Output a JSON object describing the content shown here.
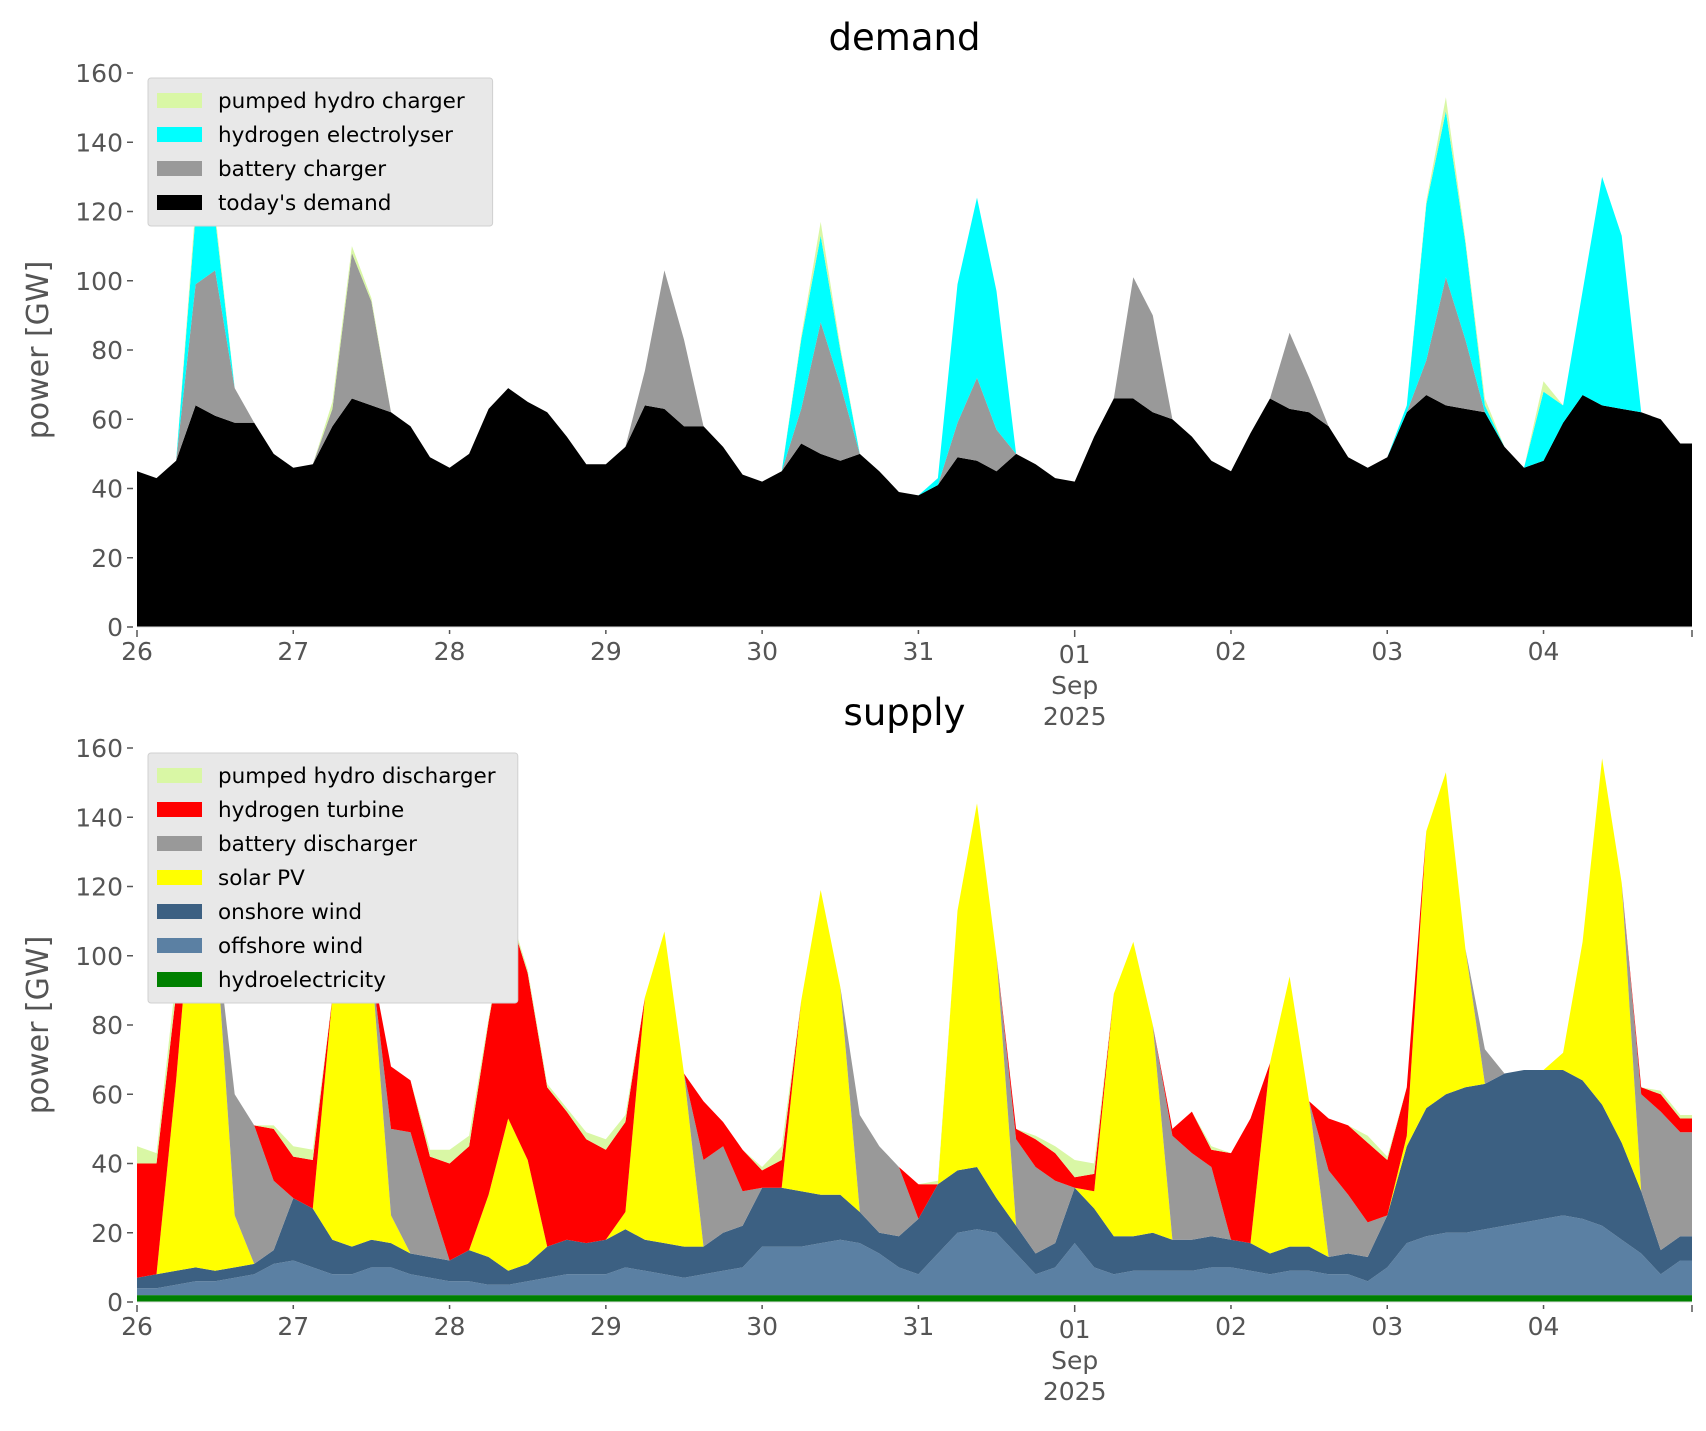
{
  "figure": {
    "panels": [
      "demand",
      "supply"
    ]
  },
  "chart_data": [
    {
      "type": "area",
      "stacked": true,
      "title": "demand",
      "xlabel": "",
      "ylabel": "power [GW]",
      "ylim": [
        0,
        160
      ],
      "yticks": [
        0,
        20,
        40,
        60,
        80,
        100,
        120,
        140,
        160
      ],
      "ytick_labels": [
        "0",
        "20",
        "40",
        "60",
        "80",
        "100",
        "120",
        "140",
        "160"
      ],
      "xrange_days": [
        0,
        9.95
      ],
      "xticks": [
        {
          "day": 0,
          "label": "26"
        },
        {
          "day": 1,
          "label": "27"
        },
        {
          "day": 2,
          "label": "28"
        },
        {
          "day": 3,
          "label": "29"
        },
        {
          "day": 4,
          "label": "30"
        },
        {
          "day": 5,
          "label": "31"
        },
        {
          "day": 6,
          "label": "01",
          "sublabel": [
            "Sep",
            "2025"
          ]
        },
        {
          "day": 7,
          "label": "02"
        },
        {
          "day": 8,
          "label": "03"
        },
        {
          "day": 9,
          "label": "04"
        }
      ],
      "x_start": "2025-08-26 00:00",
      "x_step_hours": 3,
      "legend_position": "top-left",
      "grid": false,
      "series": [
        {
          "name": "today's demand",
          "color": "#000000",
          "values": [
            45,
            43,
            48,
            64,
            61,
            59,
            59,
            50,
            46,
            47,
            58,
            66,
            64,
            62,
            58,
            49,
            46,
            50,
            63,
            69,
            65,
            62,
            55,
            47,
            47,
            52,
            64,
            63,
            58,
            58,
            52,
            44,
            42,
            45,
            53,
            50,
            48,
            50,
            45,
            39,
            38,
            41,
            49,
            48,
            45,
            50,
            47,
            43,
            42,
            55,
            66,
            66,
            62,
            60,
            55,
            48,
            45,
            56,
            66,
            63,
            62,
            58,
            49,
            46,
            49,
            62,
            67,
            64,
            63,
            62,
            52,
            46,
            48,
            59,
            67,
            64,
            63,
            62,
            60,
            53
          ]
        },
        {
          "name": "battery charger",
          "color": "#999999",
          "values": [
            0,
            0,
            0,
            35,
            42,
            10,
            0,
            0,
            0,
            0,
            5,
            42,
            30,
            0,
            0,
            0,
            0,
            0,
            0,
            0,
            0,
            0,
            0,
            0,
            0,
            0,
            10,
            40,
            25,
            0,
            0,
            0,
            0,
            0,
            10,
            38,
            22,
            0,
            0,
            0,
            0,
            0,
            10,
            24,
            12,
            0,
            0,
            0,
            0,
            0,
            0,
            35,
            28,
            0,
            0,
            0,
            0,
            0,
            0,
            22,
            10,
            0,
            0,
            0,
            0,
            0,
            10,
            37,
            20,
            0,
            0,
            0,
            0,
            0,
            0,
            0,
            0,
            0,
            0,
            0
          ]
        },
        {
          "name": "hydrogen electrolyser",
          "color": "#00ffff",
          "values": [
            0,
            0,
            0,
            20,
            15,
            0,
            0,
            0,
            0,
            0,
            0,
            0,
            0,
            0,
            0,
            0,
            0,
            0,
            0,
            0,
            0,
            0,
            0,
            0,
            0,
            0,
            0,
            0,
            0,
            0,
            0,
            0,
            0,
            0,
            20,
            25,
            10,
            0,
            0,
            0,
            0,
            2,
            40,
            52,
            40,
            0,
            0,
            0,
            0,
            0,
            0,
            0,
            0,
            0,
            0,
            0,
            0,
            0,
            0,
            0,
            0,
            0,
            0,
            0,
            0,
            2,
            45,
            48,
            28,
            2,
            0,
            0,
            20,
            5,
            30,
            66,
            50,
            0,
            0,
            0
          ]
        },
        {
          "name": "pumped hydro charger",
          "color": "#d9f7a5",
          "values": [
            0,
            0,
            0,
            3,
            2,
            0,
            0,
            0,
            0,
            0,
            2,
            2,
            1,
            0,
            0,
            0,
            0,
            0,
            0,
            0,
            0,
            0,
            0,
            0,
            0,
            0,
            0,
            0,
            0,
            0,
            0,
            0,
            0,
            0,
            1,
            4,
            1,
            0,
            0,
            0,
            0,
            0,
            0,
            0,
            0,
            0,
            0,
            0,
            0,
            0,
            0,
            0,
            0,
            0,
            0,
            0,
            0,
            0,
            0,
            0,
            0,
            0,
            0,
            0,
            0,
            0,
            1,
            4,
            1,
            2,
            0,
            0,
            3,
            0,
            0,
            0,
            0,
            0,
            0,
            0
          ]
        }
      ]
    },
    {
      "type": "area",
      "stacked": true,
      "title": "supply",
      "xlabel": "",
      "ylabel": "power [GW]",
      "ylim": [
        0,
        160
      ],
      "yticks": [
        0,
        20,
        40,
        60,
        80,
        100,
        120,
        140,
        160
      ],
      "ytick_labels": [
        "0",
        "20",
        "40",
        "60",
        "80",
        "100",
        "120",
        "140",
        "160"
      ],
      "xrange_days": [
        0,
        9.95
      ],
      "xticks": [
        {
          "day": 0,
          "label": "26"
        },
        {
          "day": 1,
          "label": "27"
        },
        {
          "day": 2,
          "label": "28"
        },
        {
          "day": 3,
          "label": "29"
        },
        {
          "day": 4,
          "label": "30"
        },
        {
          "day": 5,
          "label": "31"
        },
        {
          "day": 6,
          "label": "01",
          "sublabel": [
            "Sep",
            "2025"
          ]
        },
        {
          "day": 7,
          "label": "02"
        },
        {
          "day": 8,
          "label": "03"
        },
        {
          "day": 9,
          "label": "04"
        }
      ],
      "x_start": "2025-08-26 00:00",
      "x_step_hours": 3,
      "legend_position": "top-left",
      "grid": false,
      "series": [
        {
          "name": "hydroelectricity",
          "color": "#008000",
          "values": [
            2,
            2,
            2,
            2,
            2,
            2,
            2,
            2,
            2,
            2,
            2,
            2,
            2,
            2,
            2,
            2,
            2,
            2,
            2,
            2,
            2,
            2,
            2,
            2,
            2,
            2,
            2,
            2,
            2,
            2,
            2,
            2,
            2,
            2,
            2,
            2,
            2,
            2,
            2,
            2,
            2,
            2,
            2,
            2,
            2,
            2,
            2,
            2,
            2,
            2,
            2,
            2,
            2,
            2,
            2,
            2,
            2,
            2,
            2,
            2,
            2,
            2,
            2,
            2,
            2,
            2,
            2,
            2,
            2,
            2,
            2,
            2,
            2,
            2,
            2,
            2,
            2,
            2,
            2,
            2
          ]
        },
        {
          "name": "offshore wind",
          "color": "#5b80a3",
          "values": [
            2,
            2,
            3,
            4,
            4,
            5,
            6,
            9,
            10,
            8,
            6,
            6,
            8,
            8,
            6,
            5,
            4,
            4,
            3,
            3,
            4,
            5,
            6,
            6,
            6,
            8,
            7,
            6,
            5,
            6,
            7,
            8,
            14,
            14,
            14,
            15,
            16,
            15,
            12,
            8,
            6,
            12,
            18,
            19,
            18,
            12,
            6,
            8,
            15,
            8,
            6,
            7,
            7,
            7,
            7,
            8,
            8,
            7,
            6,
            7,
            7,
            6,
            6,
            4,
            8,
            15,
            17,
            18,
            18,
            19,
            20,
            21,
            22,
            23,
            22,
            20,
            16,
            12,
            6,
            10
          ]
        },
        {
          "name": "onshore wind",
          "color": "#3c6082",
          "values": [
            3,
            4,
            4,
            4,
            3,
            3,
            3,
            4,
            18,
            17,
            10,
            8,
            8,
            7,
            6,
            6,
            6,
            9,
            8,
            4,
            5,
            9,
            10,
            9,
            10,
            11,
            9,
            9,
            9,
            8,
            11,
            12,
            17,
            17,
            16,
            14,
            13,
            9,
            6,
            9,
            16,
            20,
            18,
            18,
            10,
            8,
            6,
            7,
            16,
            17,
            11,
            10,
            11,
            9,
            9,
            9,
            8,
            8,
            6,
            7,
            7,
            5,
            6,
            7,
            15,
            28,
            37,
            40,
            42,
            42,
            44,
            44,
            43,
            42,
            40,
            35,
            28,
            18,
            7,
            7
          ]
        },
        {
          "name": "solar PV",
          "color": "#ffff00",
          "values": [
            0,
            0,
            55,
            120,
            100,
            15,
            0,
            0,
            0,
            0,
            70,
            105,
            80,
            8,
            0,
            0,
            0,
            0,
            18,
            44,
            30,
            0,
            0,
            0,
            0,
            5,
            70,
            90,
            50,
            0,
            0,
            0,
            0,
            0,
            55,
            88,
            60,
            0,
            0,
            0,
            0,
            0,
            75,
            105,
            70,
            0,
            0,
            0,
            0,
            5,
            70,
            85,
            60,
            0,
            0,
            0,
            0,
            0,
            55,
            78,
            42,
            0,
            0,
            0,
            0,
            3,
            80,
            93,
            40,
            0,
            0,
            0,
            0,
            5,
            40,
            100,
            75,
            0,
            0,
            0
          ]
        },
        {
          "name": "battery discharger",
          "color": "#999999",
          "values": [
            0,
            0,
            0,
            0,
            0,
            35,
            40,
            20,
            0,
            0,
            0,
            0,
            0,
            25,
            35,
            17,
            0,
            0,
            0,
            0,
            0,
            0,
            0,
            0,
            0,
            0,
            0,
            0,
            0,
            25,
            25,
            10,
            0,
            0,
            0,
            0,
            0,
            28,
            25,
            20,
            0,
            0,
            0,
            0,
            0,
            25,
            25,
            18,
            0,
            0,
            0,
            0,
            0,
            30,
            25,
            20,
            0,
            0,
            0,
            0,
            0,
            25,
            17,
            10,
            0,
            0,
            0,
            0,
            0,
            10,
            0,
            0,
            0,
            0,
            0,
            0,
            0,
            28,
            40,
            30
          ]
        },
        {
          "name": "hydrogen turbine",
          "color": "#ff0000",
          "values": [
            33,
            32,
            25,
            0,
            0,
            0,
            0,
            15,
            12,
            14,
            0,
            0,
            0,
            18,
            15,
            12,
            28,
            30,
            50,
            60,
            54,
            46,
            37,
            30,
            26,
            26,
            0,
            0,
            0,
            17,
            7,
            12,
            5,
            8,
            0,
            0,
            0,
            0,
            0,
            0,
            10,
            0,
            0,
            0,
            0,
            3,
            8,
            8,
            3,
            5,
            0,
            0,
            0,
            2,
            12,
            5,
            25,
            36,
            0,
            0,
            0,
            15,
            20,
            23,
            16,
            14,
            0,
            0,
            0,
            0,
            0,
            0,
            0,
            0,
            0,
            0,
            0,
            2,
            5,
            4
          ]
        },
        {
          "name": "pumped hydro discharger",
          "color": "#d9f7a5",
          "values": [
            5,
            3,
            5,
            0,
            0,
            0,
            0,
            1,
            3,
            3,
            0,
            0,
            0,
            0,
            0,
            2,
            4,
            3,
            1,
            1,
            1,
            1,
            1,
            2,
            3,
            2,
            0,
            0,
            0,
            0,
            0,
            0,
            1,
            4,
            0,
            0,
            0,
            0,
            0,
            0,
            0,
            1,
            0,
            0,
            0,
            0,
            1,
            2,
            5,
            3,
            0,
            0,
            0,
            0,
            0,
            1,
            0,
            0,
            0,
            0,
            0,
            0,
            0,
            2,
            1,
            0,
            0,
            0,
            0,
            0,
            0,
            0,
            0,
            0,
            0,
            0,
            0,
            0,
            1,
            1
          ]
        }
      ]
    }
  ]
}
